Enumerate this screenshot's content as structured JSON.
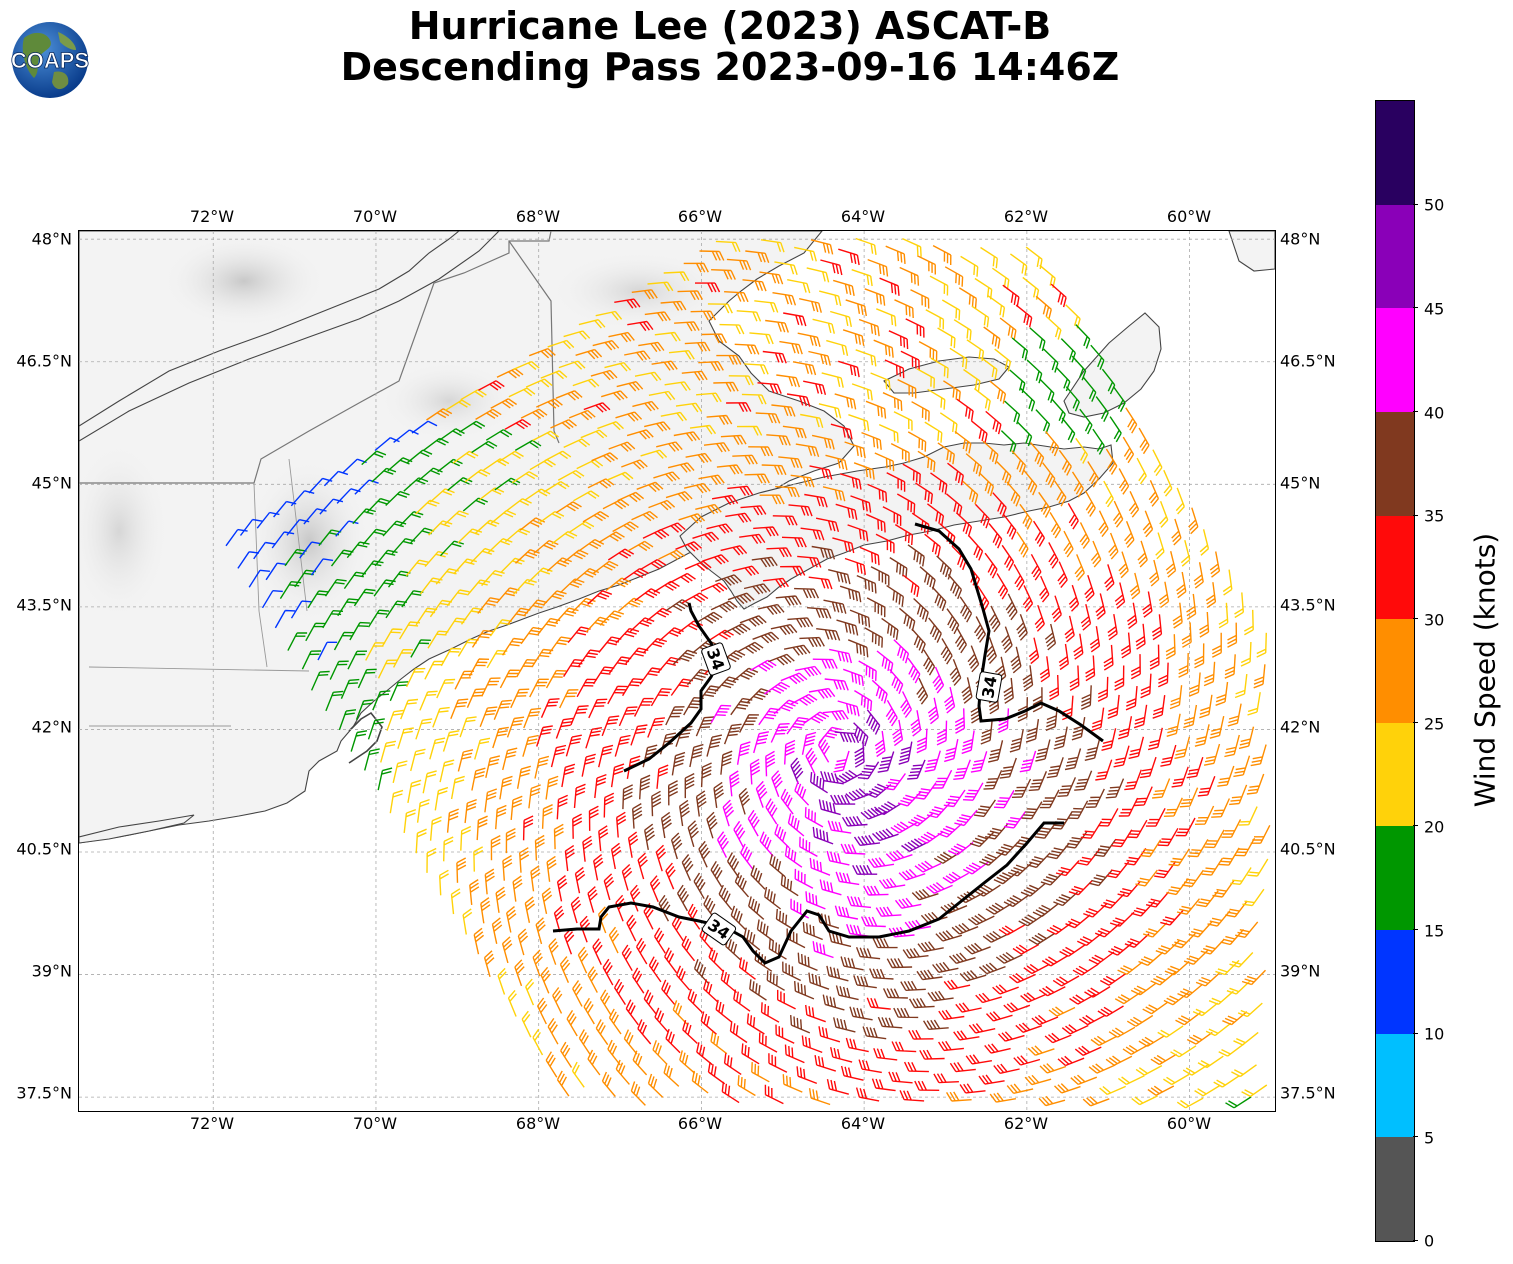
{
  "title": {
    "line1": "Hurricane Lee (2023) ASCAT-B",
    "line2": "Descending Pass 2023-09-16 14:46Z"
  },
  "logo": {
    "text": "COAPS",
    "icon": "globe-icon"
  },
  "map": {
    "lon_range": [
      -73.65,
      -58.95
    ],
    "lat_range": [
      37.33,
      48.1
    ],
    "lon_ticks": [
      "72°W",
      "70°W",
      "68°W",
      "66°W",
      "64°W",
      "62°W",
      "60°W"
    ],
    "lat_ticks": [
      "48°N",
      "46.5°N",
      "45°N",
      "43.5°N",
      "42°N",
      "40.5°N",
      "39°N",
      "37.5°N"
    ],
    "gridlines": true,
    "contour_label": "34",
    "contour_color": "#000000"
  },
  "colorbar": {
    "title": "Wind Speed (knots)",
    "tick_labels": [
      "0",
      "5",
      "10",
      "15",
      "20",
      "25",
      "30",
      "35",
      "40",
      "45",
      "50"
    ],
    "range": [
      0,
      55
    ],
    "colors": [
      "#555555",
      "#00bfff",
      "#0035ff",
      "#009700",
      "#ffd20a",
      "#ff8e00",
      "#ff0a0a",
      "#80391f",
      "#ff00ff",
      "#8a00b8",
      "#290060"
    ]
  }
}
